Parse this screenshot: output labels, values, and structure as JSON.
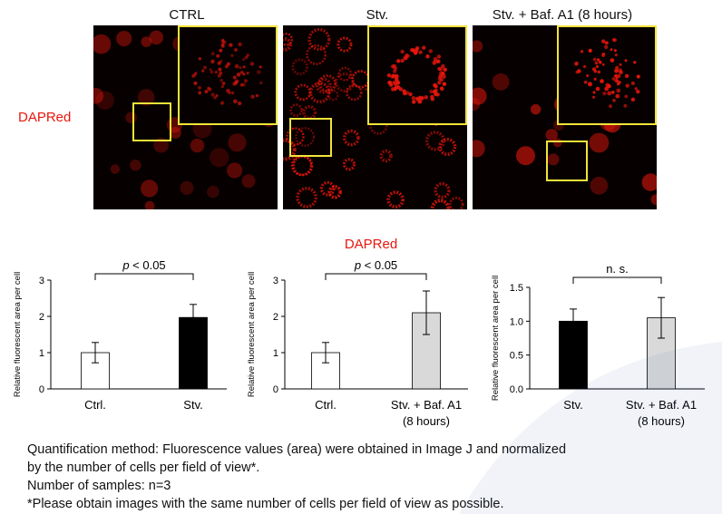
{
  "microscopy": {
    "row_label": "DAPRed",
    "panels": [
      {
        "title": "CTRL"
      },
      {
        "title": "Stv."
      },
      {
        "title": "Stv. + Baf. A1 (8 hours)"
      }
    ],
    "colors": {
      "background": "#070000",
      "stain": "#e8160c",
      "inset_border": "#f2e43a"
    }
  },
  "chart_section_label": "DAPRed",
  "chart_data": [
    {
      "type": "bar",
      "categories": [
        "Ctrl.",
        "Stv."
      ],
      "values": [
        1.0,
        1.97
      ],
      "errors": [
        0.28,
        0.36
      ],
      "colors": [
        "#ffffff",
        "#000000"
      ],
      "ylabel": "Relative fluorescent area per cell",
      "ylim": [
        0,
        3
      ],
      "yticks": [
        "0",
        "1",
        "2",
        "3"
      ],
      "significance": {
        "p_prefix": "p",
        "p_suffix": " < 0.05"
      }
    },
    {
      "type": "bar",
      "categories": [
        "Ctrl.",
        "Stv. + Baf. A1\n(8 hours)"
      ],
      "values": [
        1.0,
        2.1
      ],
      "errors": [
        0.28,
        0.6
      ],
      "colors": [
        "#ffffff",
        "#d9d9d9"
      ],
      "ylabel": "Relative fluorescent area per cell",
      "ylim": [
        0,
        3
      ],
      "yticks": [
        "0",
        "1",
        "2",
        "3"
      ],
      "significance": {
        "p_prefix": "p",
        "p_suffix": " < 0.05"
      }
    },
    {
      "type": "bar",
      "categories": [
        "Stv.",
        "Stv. + Baf. A1\n(8 hours)"
      ],
      "values": [
        1.0,
        1.05
      ],
      "errors": [
        0.18,
        0.3
      ],
      "colors": [
        "#000000",
        "#d9d9d9"
      ],
      "ylabel": "Relative fluorescent area per cell",
      "ylim": [
        0,
        1.5
      ],
      "yticks": [
        "0.0",
        "0.5",
        "1.0",
        "1.5"
      ],
      "significance": {
        "text": "n. s."
      }
    }
  ],
  "notes": {
    "line1": "Quantification method: Fluorescence values (area) were obtained in Image J and normalized",
    "line2": "by the number of cells per field of view*.",
    "line3": "Number of samples: n=3",
    "line4": "*Please obtain images with the same number of cells per field of view as possible."
  }
}
